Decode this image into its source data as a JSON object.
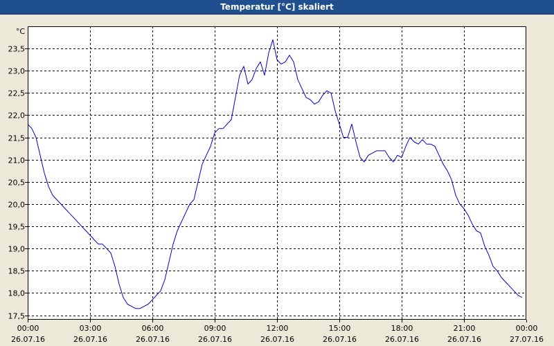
{
  "window": {
    "title": "Temperatur [°C] skaliert"
  },
  "colors": {
    "line": "#0000cc",
    "titlebar": "#1f4f8f",
    "grid": "#000000",
    "background": "#ffffff"
  },
  "chart_data": {
    "type": "line",
    "title": "Temperatur [°C] skaliert",
    "xlabel": "",
    "ylabel": "",
    "y_unit": "°C",
    "ylim": [
      17.4,
      24.0
    ],
    "xlim": [
      "26.07.16 00:00",
      "27.07.16 00:00"
    ],
    "grid": true,
    "y_ticks": [
      "17,5",
      "18,0",
      "18,5",
      "19,0",
      "19,5",
      "20,0",
      "20,5",
      "21,0",
      "21,5",
      "22,0",
      "22,5",
      "23,0",
      "23,5"
    ],
    "x_ticks": [
      {
        "time": "00:00",
        "date": "26.07.16"
      },
      {
        "time": "03:00",
        "date": "26.07.16"
      },
      {
        "time": "06:00",
        "date": "26.07.16"
      },
      {
        "time": "09:00",
        "date": "26.07.16"
      },
      {
        "time": "12:00",
        "date": "26.07.16"
      },
      {
        "time": "15:00",
        "date": "26.07.16"
      },
      {
        "time": "18:00",
        "date": "26.07.16"
      },
      {
        "time": "21:00",
        "date": "26.07.16"
      },
      {
        "time": "00:00",
        "date": "27.07.16"
      }
    ],
    "series": [
      {
        "x_hours": [
          0.0,
          0.2,
          0.4,
          0.6,
          0.8,
          1.0,
          1.2,
          1.4,
          1.6,
          1.8,
          2.0,
          2.2,
          2.4,
          2.6,
          2.8,
          3.0,
          3.2,
          3.4,
          3.6,
          3.8,
          4.0,
          4.2,
          4.4,
          4.6,
          4.8,
          5.0,
          5.2,
          5.4,
          5.6,
          5.8,
          6.0,
          6.2,
          6.4,
          6.6,
          6.8,
          7.0,
          7.2,
          7.4,
          7.6,
          7.8,
          8.0,
          8.2,
          8.4,
          8.6,
          8.8,
          9.0,
          9.2,
          9.4,
          9.6,
          9.8,
          10.0,
          10.2,
          10.4,
          10.6,
          10.8,
          11.0,
          11.2,
          11.4,
          11.6,
          11.8,
          12.0,
          12.2,
          12.4,
          12.6,
          12.8,
          13.0,
          13.2,
          13.4,
          13.6,
          13.8,
          14.0,
          14.2,
          14.4,
          14.6,
          14.8,
          15.0,
          15.2,
          15.4,
          15.6,
          15.8,
          16.0,
          16.2,
          16.4,
          16.6,
          16.8,
          17.0,
          17.2,
          17.4,
          17.6,
          17.8,
          18.0,
          18.2,
          18.4,
          18.6,
          18.8,
          19.0,
          19.2,
          19.4,
          19.6,
          19.8,
          20.0,
          20.2,
          20.4,
          20.6,
          20.8,
          21.0,
          21.2,
          21.4,
          21.6,
          21.8,
          22.0,
          22.2,
          22.4,
          22.6,
          22.8,
          23.0,
          23.2,
          23.4,
          23.6,
          23.8
        ],
        "values": [
          21.8,
          21.7,
          21.5,
          21.1,
          20.7,
          20.4,
          20.2,
          20.1,
          20.0,
          19.9,
          19.8,
          19.7,
          19.6,
          19.5,
          19.4,
          19.3,
          19.2,
          19.1,
          19.1,
          19.0,
          18.9,
          18.6,
          18.2,
          17.9,
          17.75,
          17.7,
          17.65,
          17.65,
          17.7,
          17.75,
          17.85,
          17.95,
          18.05,
          18.3,
          18.7,
          19.1,
          19.4,
          19.6,
          19.8,
          20.0,
          20.1,
          20.5,
          20.9,
          21.1,
          21.3,
          21.6,
          21.7,
          21.7,
          21.8,
          21.9,
          22.4,
          22.9,
          23.1,
          22.7,
          22.8,
          23.05,
          23.2,
          22.9,
          23.4,
          23.7,
          23.25,
          23.15,
          23.2,
          23.35,
          23.2,
          22.8,
          22.6,
          22.4,
          22.35,
          22.25,
          22.3,
          22.45,
          22.55,
          22.5,
          22.1,
          21.8,
          21.5,
          21.5,
          21.8,
          21.4,
          21.05,
          20.95,
          21.1,
          21.15,
          21.2,
          21.2,
          21.2,
          21.05,
          20.95,
          21.1,
          21.05,
          21.3,
          21.5,
          21.4,
          21.35,
          21.45,
          21.35,
          21.35,
          21.3,
          21.1,
          20.9,
          20.75,
          20.55,
          20.2,
          20.0,
          19.9,
          19.75,
          19.55,
          19.4,
          19.35,
          19.05,
          18.85,
          18.6,
          18.5,
          18.35,
          18.25,
          18.15,
          18.05,
          17.95,
          17.9
        ]
      }
    ]
  }
}
